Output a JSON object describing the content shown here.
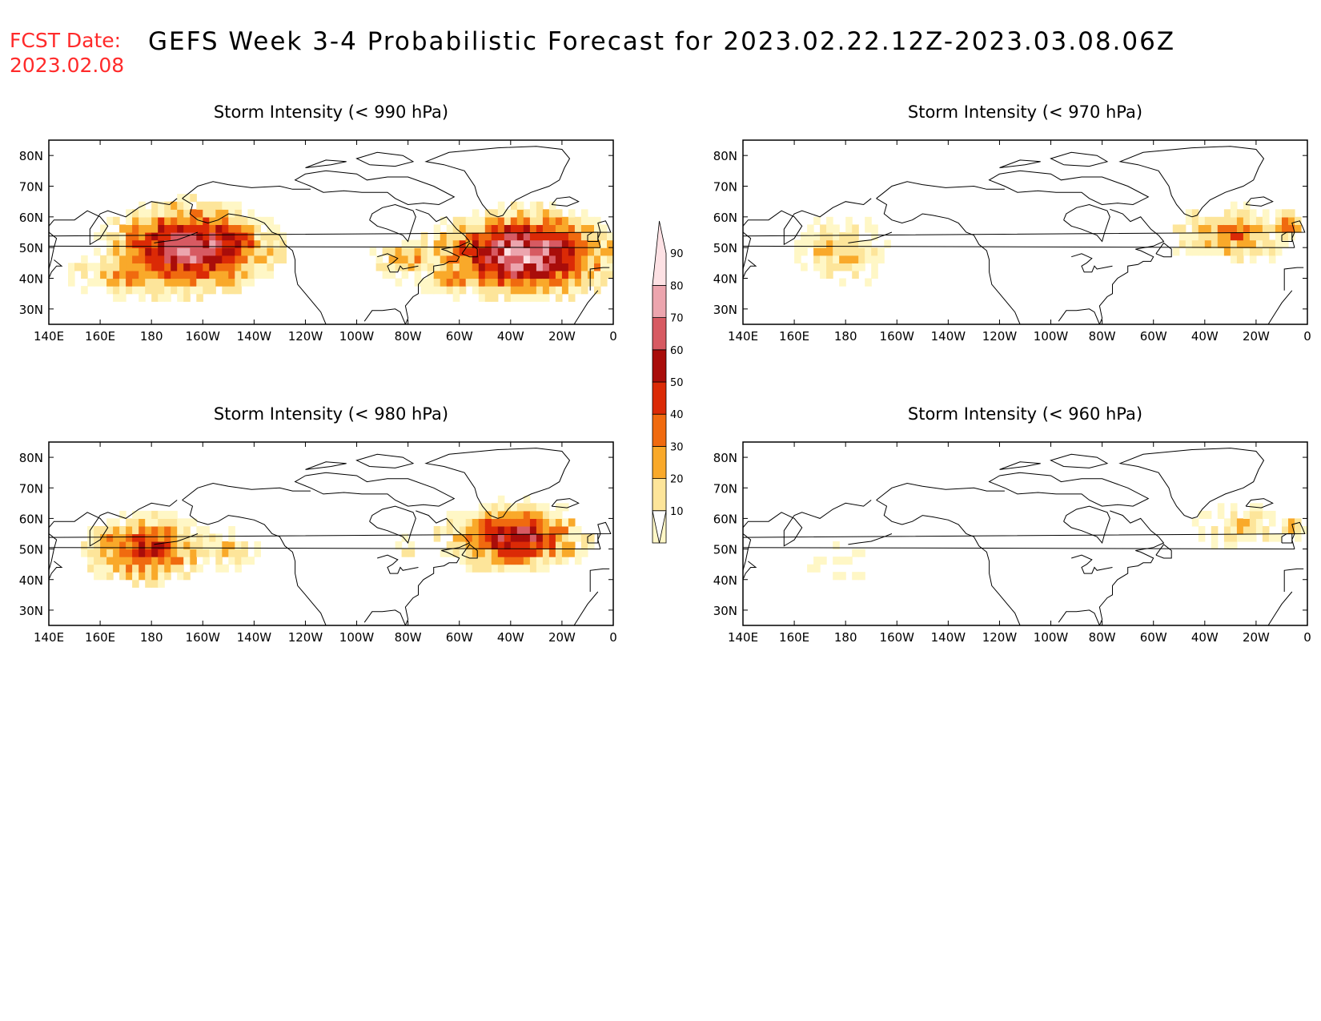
{
  "header": {
    "fcst_label": "FCST Date:",
    "fcst_date": "2023.02.08",
    "title": "GEFS Week 3-4 Probabilistic Forecast for 2023.02.22.12Z-2023.03.08.06Z"
  },
  "lat_ticks": [
    "80N",
    "70N",
    "60N",
    "50N",
    "40N",
    "30N"
  ],
  "lon_ticks": [
    "140E",
    "160E",
    "180",
    "160W",
    "140W",
    "120W",
    "100W",
    "80W",
    "60W",
    "40W",
    "20W",
    "0"
  ],
  "colorbar": {
    "levels": [
      "10",
      "20",
      "30",
      "40",
      "50",
      "60",
      "70",
      "80",
      "90"
    ],
    "colors": [
      "#fff7c6",
      "#fde59a",
      "#f9a92a",
      "#f06a0f",
      "#db2a06",
      "#a90d0a",
      "#d75a62",
      "#eca5ae",
      "#fde1e4"
    ]
  },
  "chart_data": [
    {
      "type": "heatmap",
      "title": "Storm Intensity (< 990 hPa)",
      "x_range": [
        "140E",
        "0"
      ],
      "y_range": [
        "25N",
        "85N"
      ],
      "levels": [
        10,
        20,
        30,
        40,
        50,
        60,
        70,
        80,
        90
      ],
      "regions": [
        {
          "lon": -165,
          "lat": 50,
          "lon_radius": 30,
          "lat_radius": 13,
          "peak": 80
        },
        {
          "lon": 175,
          "lat": 42,
          "lon_radius": 22,
          "lat_radius": 8,
          "peak": 40
        },
        {
          "lon": -148,
          "lat": 52,
          "lon_radius": 12,
          "lat_radius": 7,
          "peak": 60
        },
        {
          "lon": -35,
          "lat": 48,
          "lon_radius": 33,
          "lat_radius": 13,
          "peak": 85
        },
        {
          "lon": -80,
          "lat": 46,
          "lon_radius": 12,
          "lat_radius": 6,
          "peak": 35
        },
        {
          "lon": -60,
          "lat": 40,
          "lon_radius": 14,
          "lat_radius": 5,
          "peak": 45
        }
      ]
    },
    {
      "type": "heatmap",
      "title": "Storm Intensity (< 970 hPa)",
      "x_range": [
        "140E",
        "0"
      ],
      "y_range": [
        "25N",
        "85N"
      ],
      "levels": [
        10,
        20,
        30,
        40,
        50,
        60,
        70,
        80,
        90
      ],
      "regions": [
        {
          "lon": 178,
          "lat": 49,
          "lon_radius": 15,
          "lat_radius": 10,
          "peak": 30
        },
        {
          "lon": -30,
          "lat": 54,
          "lon_radius": 20,
          "lat_radius": 8,
          "peak": 45
        },
        {
          "lon": -8,
          "lat": 57,
          "lon_radius": 5,
          "lat_radius": 4,
          "peak": 55
        }
      ]
    },
    {
      "type": "heatmap",
      "title": "Storm Intensity (< 980 hPa)",
      "x_range": [
        "140E",
        "0"
      ],
      "y_range": [
        "25N",
        "85N"
      ],
      "levels": [
        10,
        20,
        30,
        40,
        50,
        60,
        70,
        80,
        90
      ],
      "regions": [
        {
          "lon": 178,
          "lat": 50,
          "lon_radius": 22,
          "lat_radius": 10,
          "peak": 58
        },
        {
          "lon": -150,
          "lat": 50,
          "lon_radius": 10,
          "lat_radius": 6,
          "peak": 30
        },
        {
          "lon": -38,
          "lat": 54,
          "lon_radius": 25,
          "lat_radius": 10,
          "peak": 68
        },
        {
          "lon": -80,
          "lat": 50,
          "lon_radius": 6,
          "lat_radius": 5,
          "peak": 15
        }
      ]
    },
    {
      "type": "heatmap",
      "title": "Storm Intensity (< 960 hPa)",
      "x_range": [
        "140E",
        "0"
      ],
      "y_range": [
        "25N",
        "85N"
      ],
      "levels": [
        10,
        20,
        30,
        40,
        50,
        60,
        70,
        80,
        90
      ],
      "regions": [
        {
          "lon": -25,
          "lat": 57,
          "lon_radius": 16,
          "lat_radius": 6,
          "peak": 28
        },
        {
          "lon": 178,
          "lat": 45,
          "lon_radius": 10,
          "lat_radius": 5,
          "peak": 15
        },
        {
          "lon": -7,
          "lat": 57,
          "lon_radius": 5,
          "lat_radius": 3,
          "peak": 35
        }
      ]
    }
  ]
}
